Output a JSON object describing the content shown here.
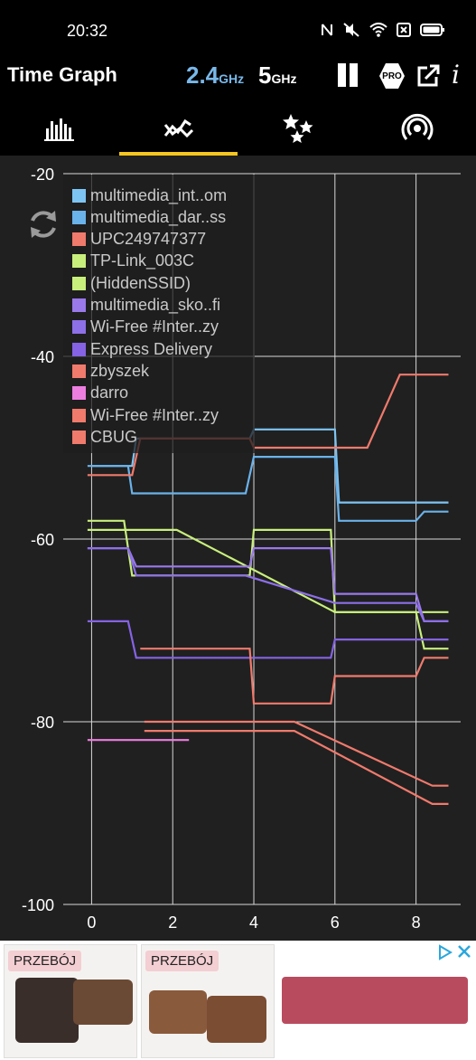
{
  "status": {
    "time": "20:32"
  },
  "app": {
    "title": "Time Graph",
    "band_24": "2.4",
    "band_5": "5",
    "band_unit": "GHz",
    "pro_label": "PRO",
    "info_label": "i"
  },
  "tabs": [
    "channel-graph",
    "time-graph",
    "channel-rating",
    "access-points"
  ],
  "colors": {
    "accent": "#f6c61f",
    "band_active": "#79b8ea",
    "background": "#202020"
  },
  "chart_data": {
    "type": "line",
    "xlabel": "",
    "ylabel": "",
    "x_ticks": [
      "0",
      "2",
      "4",
      "6",
      "8"
    ],
    "y_ticks": [
      "-20",
      "-40",
      "-60",
      "-80",
      "-100"
    ],
    "xlim": [
      -0.7,
      9.1
    ],
    "ylim": [
      -100,
      -20
    ],
    "grid": true,
    "legend_position": "top-left",
    "series": [
      {
        "name": "multimedia_int..om",
        "color": "#7ec4f3",
        "x": [
          0,
          1.0,
          1.1,
          3.9,
          4.0,
          6.0,
          6.1,
          8.8
        ],
        "y": [
          -52,
          -52,
          -49,
          -49,
          -48,
          -48,
          -56,
          -56
        ]
      },
      {
        "name": "multimedia_dar..ss",
        "color": "#6ab2ea",
        "x": [
          -0.1,
          0.9,
          1.0,
          3.8,
          4.0,
          6.0,
          6.1,
          8.0,
          8.2,
          8.8
        ],
        "y": [
          -52,
          -52,
          -55,
          -55,
          -51,
          -51,
          -58,
          -58,
          -57,
          -57
        ]
      },
      {
        "name": "UPC249747377",
        "color": "#f07a6c",
        "x": [
          -0.1,
          1.0,
          1.2,
          3.9,
          4.0,
          6.8,
          7.6,
          8.8
        ],
        "y": [
          -53,
          -53,
          -49,
          -49,
          -50,
          -50,
          -42,
          -42
        ]
      },
      {
        "name": "TP-Link_003C",
        "color": "#c8ef7c",
        "x": [
          -0.1,
          0.8,
          1.0,
          3.9,
          4.0,
          5.9,
          6.0,
          8.8
        ],
        "y": [
          -58,
          -58,
          -64,
          -64,
          -59,
          -59,
          -68,
          -68
        ]
      },
      {
        "name": "(HiddenSSID)",
        "color": "#c8ef7c",
        "x": [
          -0.1,
          2.1,
          6.0,
          8.0,
          8.2,
          8.8
        ],
        "y": [
          -59,
          -59,
          -68,
          -68,
          -72,
          -72
        ]
      },
      {
        "name": "multimedia_sko..fi",
        "color": "#9a79ea",
        "x": [
          -0.1,
          0.9,
          1.1,
          3.9,
          4.0,
          5.9,
          6.0,
          8.0,
          8.2,
          8.8
        ],
        "y": [
          -61,
          -61,
          -63,
          -63,
          -61,
          -61,
          -66,
          -66,
          -69,
          -69
        ]
      },
      {
        "name": "Wi-Free #Inter..zy",
        "color": "#8d6fe8",
        "x": [
          -0.1,
          0.9,
          1.1,
          3.8,
          6.0,
          8.0,
          8.2,
          8.8
        ],
        "y": [
          -61,
          -61,
          -64,
          -64,
          -67,
          -67,
          -69,
          -69
        ]
      },
      {
        "name": "Express Delivery",
        "color": "#8563e4",
        "x": [
          -0.1,
          0.9,
          1.1,
          5.9,
          6.0,
          8.8
        ],
        "y": [
          -69,
          -69,
          -73,
          -73,
          -71,
          -71
        ]
      },
      {
        "name": "zbyszek",
        "color": "#f07a6c",
        "x": [
          1.2,
          3.9,
          4.0,
          5.9,
          6.0,
          8.0,
          8.2,
          8.8
        ],
        "y": [
          -72,
          -72,
          -78,
          -78,
          -75,
          -75,
          -73,
          -73
        ]
      },
      {
        "name": "darro",
        "color": "#ec7ee0",
        "x": [
          -0.1,
          2.4
        ],
        "y": [
          -82,
          -82
        ]
      },
      {
        "name": "Wi-Free #Inter..zy",
        "color": "#f07a6c",
        "x": [
          1.3,
          5.0,
          8.4,
          8.8
        ],
        "y": [
          -80,
          -80,
          -87,
          -87
        ]
      },
      {
        "name": "CBUG",
        "color": "#f07a6c",
        "x": [
          1.3,
          5.0,
          8.4,
          8.8
        ],
        "y": [
          -81,
          -81,
          -89,
          -89
        ]
      }
    ]
  },
  "ad": {
    "badge_1": "PRZEBÓJ",
    "badge_2": "PRZEBÓJ"
  }
}
